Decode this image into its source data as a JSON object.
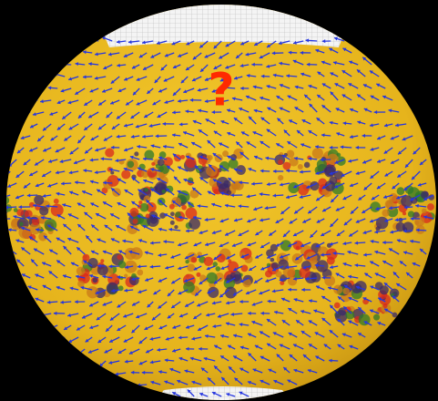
{
  "annotation": "?"
}
